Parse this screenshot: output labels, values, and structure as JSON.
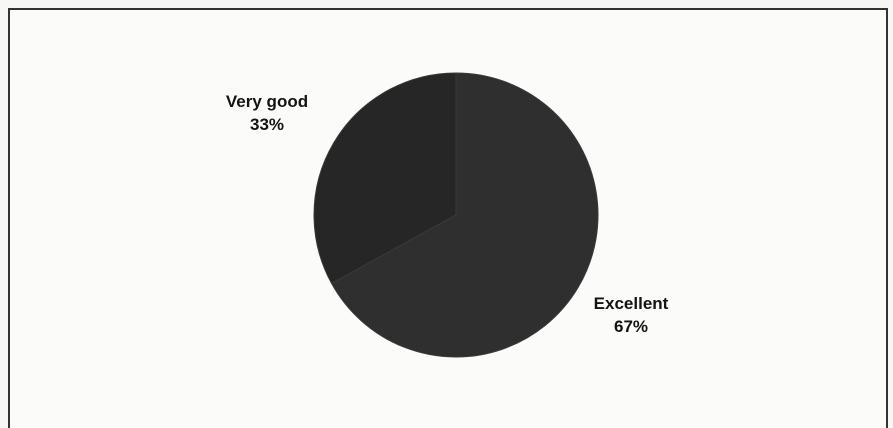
{
  "chart_data": {
    "type": "pie",
    "title": "",
    "categories": [
      "Excellent",
      "Very good"
    ],
    "values": [
      67,
      33
    ],
    "labels": [
      {
        "name": "Very good",
        "percent": "33%"
      },
      {
        "name": "Excellent",
        "percent": "67%"
      }
    ],
    "colors": [
      "#2f2f2f",
      "#262626"
    ],
    "legend": "none"
  }
}
